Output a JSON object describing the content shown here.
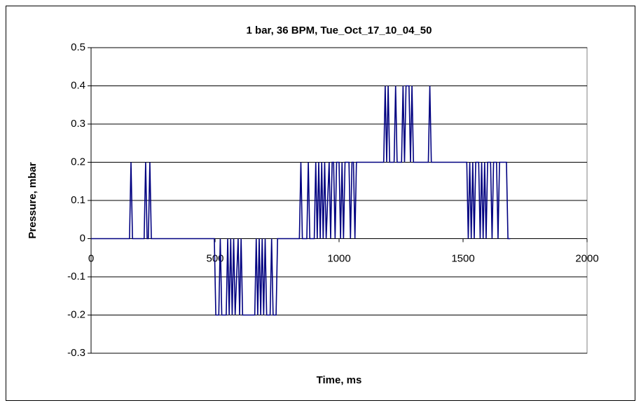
{
  "chart_data": {
    "type": "line",
    "title": "1 bar, 36 BPM, Tue_Oct_17_10_04_50",
    "x_label": "Time, ms",
    "y_label": "Pressure, mbar",
    "xlim": [
      0,
      2000
    ],
    "xticks": [
      0,
      500,
      1000,
      1500,
      2000
    ],
    "ylim": [
      -0.3,
      0.5
    ],
    "yticks": [
      -0.3,
      -0.2,
      -0.1,
      0,
      0.1,
      0.2,
      0.3,
      0.4,
      0.5
    ],
    "grid": true,
    "series": [
      {
        "name": "Pressure",
        "color": "#000080",
        "x": [
          0,
          155,
          161,
          167,
          214,
          220,
          226,
          231,
          237,
          243,
          497,
          503,
          515,
          521,
          527,
          545,
          551,
          557,
          563,
          569,
          575,
          581,
          593,
          599,
          605,
          611,
          660,
          666,
          672,
          678,
          684,
          690,
          696,
          702,
          708,
          722,
          728,
          734,
          746,
          752,
          840,
          846,
          852,
          870,
          876,
          882,
          900,
          906,
          912,
          918,
          924,
          930,
          936,
          942,
          948,
          960,
          966,
          972,
          978,
          984,
          990,
          1000,
          1006,
          1012,
          1018,
          1024,
          1040,
          1046,
          1052,
          1058,
          1064,
          1070,
          1180,
          1186,
          1192,
          1198,
          1204,
          1222,
          1228,
          1234,
          1252,
          1258,
          1264,
          1270,
          1282,
          1288,
          1294,
          1300,
          1360,
          1366,
          1372,
          1515,
          1521,
          1527,
          1533,
          1539,
          1545,
          1551,
          1563,
          1569,
          1575,
          1581,
          1587,
          1593,
          1599,
          1611,
          1617,
          1623,
          1635,
          1641,
          1647,
          1675,
          1681,
          1690
        ],
        "values": [
          0,
          0,
          0.2,
          0,
          0,
          0.2,
          0,
          0,
          0.2,
          0,
          0,
          -0.2,
          -0.2,
          0,
          -0.2,
          -0.2,
          0,
          -0.2,
          0,
          -0.2,
          0,
          -0.2,
          0,
          -0.2,
          0,
          -0.2,
          -0.2,
          0,
          -0.2,
          0,
          -0.2,
          0,
          -0.2,
          0,
          -0.2,
          -0.2,
          0,
          -0.2,
          -0.2,
          0,
          0,
          0.2,
          0,
          0,
          0.2,
          0,
          0,
          0.2,
          0,
          0.2,
          0,
          0.2,
          0,
          0.2,
          0,
          0.2,
          0,
          0.2,
          0.2,
          0,
          0.2,
          0.2,
          0,
          0.2,
          0,
          0.2,
          0.2,
          0,
          0.2,
          0.2,
          0,
          0.2,
          0.2,
          0.4,
          0.2,
          0.4,
          0.2,
          0.2,
          0.4,
          0.2,
          0.2,
          0.4,
          0.2,
          0.4,
          0.4,
          0.2,
          0.4,
          0.2,
          0.2,
          0.4,
          0.2,
          0.2,
          0,
          0.2,
          0,
          0.2,
          0,
          0.2,
          0.2,
          0,
          0.2,
          0,
          0.2,
          0,
          0.2,
          0.2,
          0,
          0.2,
          0.2,
          0,
          0.2,
          0.2,
          0,
          0
        ]
      }
    ]
  }
}
